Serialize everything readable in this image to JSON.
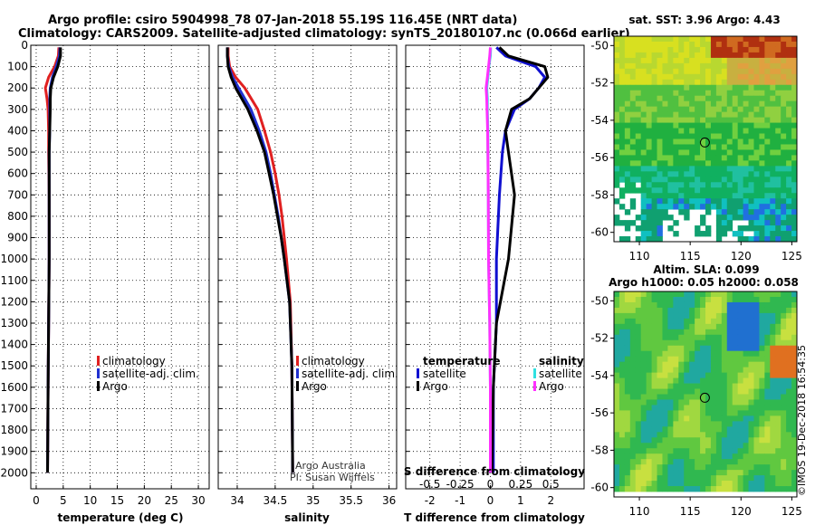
{
  "title": {
    "line1": "Argo profile: csiro 5904998_78 07-Jan-2018 55.19S 116.45E (NRT data)",
    "line2": "Climatology: CARS2009. Satellite-adjusted climatology: synTS_20180107.nc (0.066d earlier)"
  },
  "credit": {
    "line1": "Argo Australia",
    "line2": "PI: Susan Wijffels"
  },
  "stamp": "©IMOS 19-Dec-2018 16:54:35",
  "colors": {
    "climatology": "#e02020",
    "satellite": "#2030d0",
    "argo": "#000000",
    "sat_t": "#1010d0",
    "sat_s": "#30e0e0",
    "argo_s": "#ff30ff"
  },
  "chart_data": [
    {
      "type": "line",
      "id": "temperature",
      "xlabel": "temperature (deg C)",
      "xlim": [
        -1,
        32
      ],
      "ylim": [
        2075,
        0
      ],
      "xticks": [
        0,
        5,
        10,
        15,
        20,
        25,
        30
      ],
      "yticks": [
        0,
        100,
        200,
        300,
        400,
        500,
        600,
        700,
        800,
        900,
        1000,
        1100,
        1200,
        1300,
        1400,
        1500,
        1600,
        1700,
        1800,
        1900,
        2000
      ],
      "legend": [
        "climatology",
        "satellite-adj. clim.",
        "Argo"
      ],
      "depth": [
        10,
        50,
        100,
        150,
        200,
        250,
        300,
        400,
        500,
        700,
        1000,
        1300,
        1600,
        2000
      ],
      "series": [
        {
          "name": "climatology",
          "values": [
            4.2,
            4.1,
            3.4,
            2.3,
            1.7,
            2.0,
            2.2,
            2.3,
            2.3,
            2.4,
            2.4,
            2.3,
            2.2,
            2.1
          ]
        },
        {
          "name": "satellite-adj. clim.",
          "values": [
            4.4,
            4.3,
            3.7,
            3.0,
            2.6,
            2.5,
            2.5,
            2.5,
            2.4,
            2.4,
            2.4,
            2.3,
            2.2,
            2.1
          ]
        },
        {
          "name": "Argo",
          "values": [
            4.5,
            4.5,
            4.0,
            3.2,
            2.7,
            2.6,
            2.6,
            2.5,
            2.4,
            2.4,
            2.4,
            2.3,
            2.2,
            2.1
          ]
        }
      ]
    },
    {
      "type": "line",
      "id": "salinity",
      "xlabel": "salinity",
      "xlim": [
        33.75,
        36.1
      ],
      "ylim": [
        2075,
        0
      ],
      "xticks": [
        34,
        34.5,
        35,
        35.5,
        36
      ],
      "legend": [
        "climatology",
        "satellite-adj. clim.",
        "Argo"
      ],
      "depth": [
        10,
        50,
        100,
        150,
        200,
        300,
        400,
        500,
        600,
        700,
        800,
        900,
        1000,
        1200,
        1500,
        2000
      ],
      "series": [
        {
          "name": "climatology",
          "values": [
            33.88,
            33.88,
            33.9,
            33.98,
            34.1,
            34.27,
            34.36,
            34.44,
            34.5,
            34.55,
            34.59,
            34.62,
            34.65,
            34.7,
            34.72,
            34.73
          ]
        },
        {
          "name": "satellite-adj. clim.",
          "values": [
            33.87,
            33.87,
            33.89,
            33.94,
            34.02,
            34.18,
            34.29,
            34.38,
            34.44,
            34.49,
            34.54,
            34.58,
            34.62,
            34.69,
            34.72,
            34.73
          ]
        },
        {
          "name": "Argo",
          "values": [
            33.87,
            33.87,
            33.88,
            33.92,
            33.98,
            34.14,
            34.26,
            34.36,
            34.42,
            34.48,
            34.53,
            34.58,
            34.62,
            34.69,
            34.72,
            34.73
          ]
        }
      ]
    },
    {
      "type": "line",
      "id": "difference",
      "xlabel": "T difference from climatology",
      "xlabel_top": "S difference from climatology",
      "xlim": [
        -2.8,
        3.1
      ],
      "ylim": [
        2075,
        0
      ],
      "xticks": [
        -2,
        -1,
        0,
        1,
        2
      ],
      "xticks_top_values": [
        -0.5,
        -0.25,
        0,
        0.25,
        0.5
      ],
      "xticks_top": [
        "-0.5",
        "-0.25",
        "0",
        "0.25",
        "0.5"
      ],
      "legend_temperature": {
        "title": "temperature",
        "items": [
          "satellite",
          "Argo"
        ]
      },
      "legend_salinity": {
        "title": "salinity",
        "items": [
          "satellite",
          "Argo"
        ]
      },
      "depth": [
        10,
        50,
        100,
        150,
        200,
        250,
        300,
        400,
        500,
        700,
        1000,
        1300,
        1600,
        2000
      ],
      "series": [
        {
          "name": "T satellite",
          "values": [
            0.2,
            0.5,
            1.5,
            1.8,
            1.6,
            1.3,
            0.8,
            0.5,
            0.4,
            0.3,
            0.2,
            0.2,
            0.1,
            0.1
          ]
        },
        {
          "name": "T Argo",
          "values": [
            0.3,
            0.6,
            1.8,
            1.9,
            1.6,
            1.3,
            0.7,
            0.5,
            0.6,
            0.8,
            0.6,
            0.2,
            0.1,
            0.05
          ]
        },
        {
          "name": "S satellite",
          "values": [
            0.01,
            0.0,
            -0.05,
            -0.08,
            -0.12,
            -0.1,
            -0.1,
            -0.08,
            -0.08,
            -0.07,
            -0.06,
            -0.02,
            0.0,
            0.0
          ]
        },
        {
          "name": "S Argo",
          "values": [
            0.0,
            -0.02,
            -0.06,
            -0.1,
            -0.14,
            -0.12,
            -0.11,
            -0.09,
            -0.08,
            -0.07,
            -0.06,
            -0.02,
            0.0,
            0.0
          ]
        }
      ]
    },
    {
      "type": "heatmap",
      "id": "sst-map",
      "title": "sat. SST: 3.96 Argo: 4.43",
      "xticks": [
        110,
        115,
        120,
        125
      ],
      "yticks": [
        -50,
        -52,
        -54,
        -56,
        -58,
        -60
      ],
      "xlim": [
        107.5,
        125.5
      ],
      "ylim": [
        -60.5,
        -49.5
      ],
      "marker": {
        "lon": 116.45,
        "lat": -55.19
      }
    },
    {
      "type": "heatmap",
      "id": "sla-map",
      "title": "Altim. SLA: 0.099",
      "subtitle": "Argo h1000: 0.05 h2000: 0.058",
      "xticks": [
        110,
        115,
        120,
        125
      ],
      "yticks": [
        -50,
        -52,
        -54,
        -56,
        -58,
        -60
      ],
      "xlim": [
        107.5,
        125.5
      ],
      "ylim": [
        -60.5,
        -49.5
      ],
      "marker": {
        "lon": 116.45,
        "lat": -55.19
      }
    }
  ]
}
